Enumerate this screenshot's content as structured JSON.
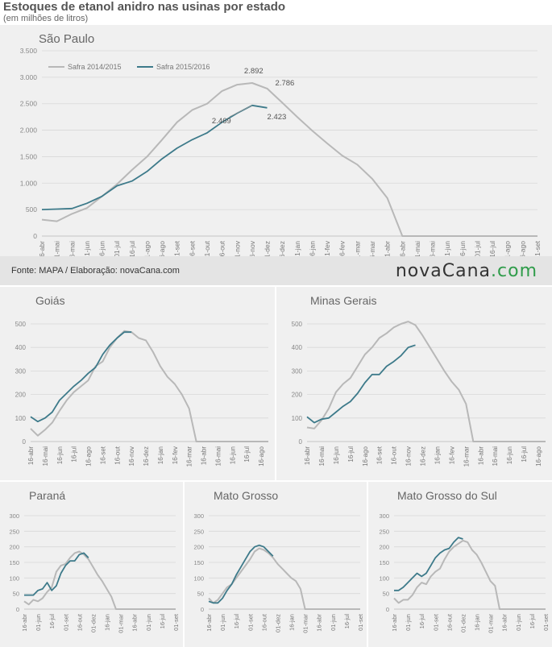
{
  "header": {
    "title": "Estoques de etanol anidro nas usinas por estado",
    "subtitle": "(em milhões de litros)"
  },
  "footer": {
    "source": "Fonte: MAPA / Elaboração: novaCana.com",
    "logo_main": "novaCana",
    "logo_suffix": ".com"
  },
  "colors": {
    "s2014": "#b8b8b8",
    "s2015": "#3d7a8a",
    "accent": "#2f9c4a"
  },
  "chart_data": [
    {
      "id": "sp",
      "type": "line",
      "title": "São Paulo",
      "ylim": [
        0,
        3500
      ],
      "yticks": [
        0,
        500,
        1000,
        1500,
        2000,
        2500,
        3000,
        3500
      ],
      "ytick_labels": [
        "0",
        "500",
        "1.000",
        "1.500",
        "2.000",
        "2.500",
        "3.000",
        "3.500"
      ],
      "xtick_labels": [
        "16-abr",
        "01-mai",
        "16-mai",
        "01-jun",
        "16-jun",
        "01-jul",
        "16-jul",
        "01-ago",
        "16-ago",
        "01-set",
        "16-set",
        "01-out",
        "16-out",
        "01-nov",
        "16-nov",
        "01-dez",
        "16-dez",
        "01-jan",
        "16-jan",
        "01-fev",
        "16-fev",
        "01-mar",
        "16-mar",
        "01-abr",
        "16-abr",
        "01-mai",
        "16-mai",
        "01-jun",
        "16-jun",
        "01-jul",
        "16-jul",
        "01-ago",
        "16-ago",
        "01-set"
      ],
      "legend": [
        "Safra 2014/2015",
        "Safra 2015/2016"
      ],
      "series": [
        {
          "name": "Safra 2014/2015",
          "values": [
            310,
            280,
            420,
            530,
            750,
            980,
            1250,
            1500,
            1820,
            2150,
            2380,
            2500,
            2740,
            2860,
            2892,
            2786,
            2520,
            2250,
            1990,
            1750,
            1520,
            1350,
            1080,
            720,
            0,
            0,
            0,
            0,
            0,
            0,
            0,
            0,
            0,
            0
          ]
        },
        {
          "name": "Safra 2015/2016",
          "values": [
            500,
            510,
            520,
            620,
            750,
            950,
            1040,
            1220,
            1460,
            1660,
            1820,
            1950,
            2150,
            2320,
            2469,
            2423
          ]
        }
      ],
      "annotations": [
        {
          "text": "2.892",
          "x": 14,
          "y": 2892
        },
        {
          "text": "2.786",
          "x": 15,
          "y": 2786
        },
        {
          "text": "2.469",
          "x": 14,
          "y": 2469
        },
        {
          "text": "2.423",
          "x": 15,
          "y": 2423
        }
      ]
    },
    {
      "id": "go",
      "type": "line",
      "title": "Goiás",
      "ylim": [
        0,
        500
      ],
      "yticks": [
        0,
        100,
        200,
        300,
        400,
        500
      ],
      "ytick_labels": [
        "0",
        "100",
        "200",
        "300",
        "400",
        "500"
      ],
      "xtick_labels": [
        "16-abr",
        "16-mai",
        "16-jun",
        "16-jul",
        "16-ago",
        "16-set",
        "16-out",
        "16-nov",
        "16-dez",
        "16-jan",
        "16-fev",
        "16-mar",
        "16-abr",
        "16-mai",
        "16-jun",
        "16-jul",
        "16-ago"
      ],
      "series": [
        {
          "name": "Safra 2014/2015",
          "values": [
            55,
            25,
            50,
            80,
            130,
            175,
            210,
            235,
            260,
            320,
            340,
            400,
            440,
            470,
            465,
            440,
            430,
            380,
            320,
            275,
            245,
            200,
            140,
            0,
            0,
            0,
            0,
            0,
            0,
            0,
            0,
            0,
            0,
            0
          ]
        },
        {
          "name": "Safra 2015/2016",
          "values": [
            105,
            85,
            100,
            125,
            175,
            205,
            235,
            260,
            290,
            315,
            370,
            410,
            440,
            465,
            465
          ]
        }
      ]
    },
    {
      "id": "mg",
      "type": "line",
      "title": "Minas Gerais",
      "ylim": [
        0,
        500
      ],
      "yticks": [
        0,
        100,
        200,
        300,
        400,
        500
      ],
      "ytick_labels": [
        "0",
        "100",
        "200",
        "300",
        "400",
        "500"
      ],
      "xtick_labels": [
        "16-abr",
        "16-mai",
        "16-jun",
        "16-jul",
        "16-ago",
        "16-set",
        "16-out",
        "16-nov",
        "16-dez",
        "16-jan",
        "16-fev",
        "16-mar",
        "16-abr",
        "16-mai",
        "16-jun",
        "16-jul",
        "16-ago"
      ],
      "series": [
        {
          "name": "Safra 2014/2015",
          "values": [
            60,
            55,
            90,
            140,
            210,
            245,
            270,
            320,
            370,
            400,
            440,
            460,
            485,
            500,
            510,
            495,
            450,
            400,
            350,
            300,
            255,
            220,
            160,
            0,
            0,
            0,
            0,
            0,
            0,
            0,
            0,
            0,
            0,
            0
          ]
        },
        {
          "name": "Safra 2015/2016",
          "values": [
            105,
            80,
            95,
            100,
            125,
            150,
            170,
            205,
            250,
            285,
            285,
            320,
            340,
            365,
            400,
            410
          ]
        }
      ]
    },
    {
      "id": "pr",
      "type": "line",
      "title": "Paraná",
      "ylim": [
        0,
        300
      ],
      "yticks": [
        0,
        50,
        100,
        150,
        200,
        250,
        300
      ],
      "ytick_labels": [
        "0",
        "50",
        "100",
        "150",
        "200",
        "250",
        "300"
      ],
      "xtick_labels": [
        "16-abr",
        "01-jun",
        "16-jul",
        "01-set",
        "16-out",
        "01-dez",
        "16-jan",
        "01-mar",
        "16-abr",
        "01-jun",
        "16-jul",
        "01-set"
      ],
      "series": [
        {
          "name": "Safra 2014/2015",
          "values": [
            25,
            15,
            30,
            25,
            35,
            55,
            70,
            120,
            140,
            145,
            165,
            180,
            185,
            175,
            160,
            135,
            110,
            90,
            65,
            40,
            0,
            0,
            0,
            0,
            0,
            0,
            0,
            0,
            0,
            0,
            0,
            0,
            0,
            0
          ]
        },
        {
          "name": "Safra 2015/2016",
          "values": [
            45,
            45,
            45,
            60,
            65,
            85,
            60,
            75,
            115,
            140,
            155,
            155,
            175,
            180,
            165
          ]
        }
      ]
    },
    {
      "id": "mt",
      "type": "line",
      "title": "Mato Grosso",
      "ylim": [
        0,
        300
      ],
      "yticks": [
        0,
        50,
        100,
        150,
        200,
        250,
        300
      ],
      "ytick_labels": [
        "0",
        "50",
        "100",
        "150",
        "200",
        "250",
        "300"
      ],
      "xtick_labels": [
        "16-abr",
        "01-jun",
        "16-jul",
        "01-set",
        "16-out",
        "01-dez",
        "16-jan",
        "01-mar",
        "16-abr",
        "01-jun",
        "16-jul",
        "01-set"
      ],
      "series": [
        {
          "name": "Safra 2014/2015",
          "values": [
            35,
            20,
            30,
            50,
            70,
            80,
            100,
            120,
            140,
            160,
            185,
            195,
            190,
            180,
            165,
            145,
            130,
            115,
            100,
            90,
            65,
            0,
            0,
            0,
            0,
            0,
            0,
            0,
            0,
            0,
            0,
            0,
            0,
            0
          ]
        },
        {
          "name": "Safra 2015/2016",
          "values": [
            25,
            20,
            20,
            35,
            60,
            80,
            110,
            135,
            160,
            185,
            200,
            205,
            200,
            185,
            170
          ]
        }
      ]
    },
    {
      "id": "ms",
      "type": "line",
      "title": "Mato Grosso do Sul",
      "ylim": [
        0,
        300
      ],
      "yticks": [
        0,
        50,
        100,
        150,
        200,
        250,
        300
      ],
      "ytick_labels": [
        "0",
        "50",
        "100",
        "150",
        "200",
        "250",
        "300"
      ],
      "xtick_labels": [
        "16-abr",
        "01-jun",
        "16-jul",
        "01-set",
        "16-out",
        "01-dez",
        "16-jan",
        "01-mar",
        "16-abr",
        "01-jun",
        "16-jul",
        "01-set"
      ],
      "series": [
        {
          "name": "Safra 2014/2015",
          "values": [
            35,
            20,
            30,
            30,
            45,
            70,
            85,
            80,
            105,
            120,
            130,
            160,
            185,
            200,
            210,
            220,
            215,
            190,
            175,
            150,
            120,
            90,
            75,
            0,
            0,
            0,
            0,
            0,
            0,
            0,
            0,
            0,
            0,
            0
          ]
        },
        {
          "name": "Safra 2015/2016",
          "values": [
            60,
            60,
            70,
            85,
            100,
            115,
            105,
            115,
            140,
            165,
            180,
            190,
            195,
            215,
            230,
            225
          ]
        }
      ]
    }
  ]
}
